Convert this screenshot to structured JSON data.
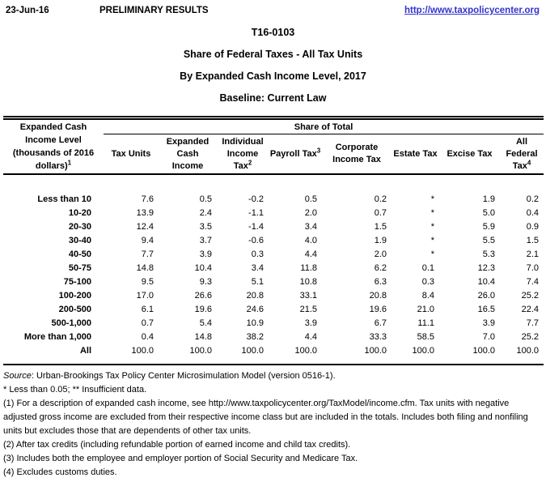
{
  "header": {
    "date": "23-Jun-16",
    "preliminary": "PRELIMINARY RESULTS",
    "url": "http://www.taxpolicycenter.org"
  },
  "title": {
    "code": "T16-0103",
    "line1": "Share of Federal Taxes - All Tax Units",
    "line2": "By Expanded Cash Income Level, 2017",
    "line3": "Baseline: Current Law"
  },
  "table": {
    "row_header_lines": [
      "Expanded Cash",
      "Income Level",
      "(thousands of 2016",
      "dollars)"
    ],
    "row_header_sup": "1",
    "span_header": "Share of Total",
    "columns": [
      {
        "lines": [
          "Tax Units"
        ],
        "sup": ""
      },
      {
        "lines": [
          "Expanded",
          "Cash",
          "Income"
        ],
        "sup": ""
      },
      {
        "lines": [
          "Individual",
          "Income",
          "Tax"
        ],
        "sup": "2"
      },
      {
        "lines": [
          "Payroll Tax"
        ],
        "sup": "3"
      },
      {
        "lines": [
          "Corporate",
          "Income Tax"
        ],
        "sup": ""
      },
      {
        "lines": [
          "Estate Tax"
        ],
        "sup": ""
      },
      {
        "lines": [
          "Excise Tax"
        ],
        "sup": ""
      },
      {
        "lines": [
          "All",
          "Federal",
          "Tax"
        ],
        "sup": "4"
      }
    ],
    "rows": [
      {
        "label": "Less than 10",
        "values": [
          "7.6",
          "0.5",
          "-0.2",
          "0.5",
          "0.2",
          "*",
          "1.9",
          "0.2"
        ]
      },
      {
        "label": "10-20",
        "values": [
          "13.9",
          "2.4",
          "-1.1",
          "2.0",
          "0.7",
          "*",
          "5.0",
          "0.4"
        ]
      },
      {
        "label": "20-30",
        "values": [
          "12.4",
          "3.5",
          "-1.4",
          "3.4",
          "1.5",
          "*",
          "5.9",
          "0.9"
        ]
      },
      {
        "label": "30-40",
        "values": [
          "9.4",
          "3.7",
          "-0.6",
          "4.0",
          "1.9",
          "*",
          "5.5",
          "1.5"
        ]
      },
      {
        "label": "40-50",
        "values": [
          "7.7",
          "3.9",
          "0.3",
          "4.4",
          "2.0",
          "*",
          "5.3",
          "2.1"
        ]
      },
      {
        "label": "50-75",
        "values": [
          "14.8",
          "10.4",
          "3.4",
          "11.8",
          "6.2",
          "0.1",
          "12.3",
          "7.0"
        ]
      },
      {
        "label": "75-100",
        "values": [
          "9.5",
          "9.3",
          "5.1",
          "10.8",
          "6.3",
          "0.3",
          "10.4",
          "7.4"
        ]
      },
      {
        "label": "100-200",
        "values": [
          "17.0",
          "26.6",
          "20.8",
          "33.1",
          "20.8",
          "8.4",
          "26.0",
          "25.2"
        ]
      },
      {
        "label": "200-500",
        "values": [
          "6.1",
          "19.6",
          "24.6",
          "21.5",
          "19.6",
          "21.0",
          "16.5",
          "22.4"
        ]
      },
      {
        "label": "500-1,000",
        "values": [
          "0.7",
          "5.4",
          "10.9",
          "3.9",
          "6.7",
          "11.1",
          "3.9",
          "7.7"
        ]
      },
      {
        "label": "More than 1,000",
        "values": [
          "0.4",
          "14.8",
          "38.2",
          "4.4",
          "33.3",
          "58.5",
          "7.0",
          "25.2"
        ]
      },
      {
        "label": "All",
        "values": [
          "100.0",
          "100.0",
          "100.0",
          "100.0",
          "100.0",
          "100.0",
          "100.0",
          "100.0"
        ]
      }
    ]
  },
  "footnotes": {
    "source_label": "Source",
    "source_rest": ": Urban-Brookings Tax Policy Center Microsimulation Model (version 0516-1).",
    "asterisk_note": "* Less than 0.05; ** Insufficient data.",
    "notes": [
      "(1) For a description of expanded cash income, see http://www.taxpolicycenter.org/TaxModel/income.cfm. Tax units with negative adjusted gross income are excluded from their respective income class but are included in the totals. Includes both filing and nonfiling units but excludes those that are dependents of other tax units.",
      "(2) After tax credits (including refundable portion of earned income and child tax credits).",
      "(3) Includes both the employee and employer portion of Social Security and Medicare Tax.",
      "(4) Excludes customs duties."
    ]
  },
  "colors": {
    "link": "#3333cc",
    "text": "#000000",
    "border": "#000000",
    "background": "#ffffff"
  }
}
